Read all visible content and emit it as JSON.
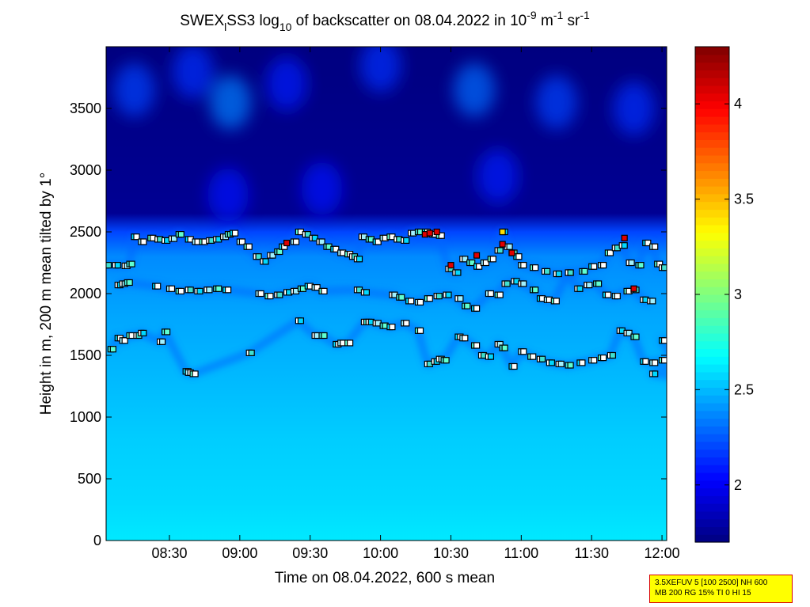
{
  "chart_data": {
    "type": "heatmap",
    "title": {
      "prefix": "SWEX",
      "sub1": "l",
      "mid": "SS3 log",
      "sub2": "10",
      "rest": " of backscatter on 08.04.2022 in 10",
      "sup1": "-9",
      "unit1": " m",
      "sup2": "-1",
      "unit2": " sr",
      "sup3": "-1"
    },
    "xlabel": "Time on 08.04.2022, 600 s mean",
    "ylabel": "Height in m, 200 m mean tilted by 1°",
    "x_ticks": [
      "08:30",
      "09:00",
      "09:30",
      "10:00",
      "10:30",
      "11:00",
      "11:30",
      "12:00"
    ],
    "x_tick_minutes": [
      510,
      540,
      570,
      600,
      630,
      660,
      690,
      720
    ],
    "xlim_minutes": [
      483,
      722
    ],
    "y_ticks": [
      "0",
      "500",
      "1000",
      "1500",
      "2000",
      "2500",
      "3000",
      "3500"
    ],
    "y_tick_values": [
      0,
      500,
      1000,
      1500,
      2000,
      2500,
      3000,
      3500
    ],
    "ylim": [
      0,
      4000
    ],
    "colorbar": {
      "ticks": [
        "2",
        "2.5",
        "3",
        "3.5",
        "4"
      ],
      "tick_values": [
        2,
        2.5,
        3,
        3.5,
        4
      ],
      "range": [
        1.7,
        4.3
      ],
      "colormap": "jet"
    },
    "background_profile": [
      {
        "h": 0,
        "v": 2.62
      },
      {
        "h": 300,
        "v": 2.58
      },
      {
        "h": 800,
        "v": 2.55
      },
      {
        "h": 1300,
        "v": 2.5
      },
      {
        "h": 1800,
        "v": 2.45
      },
      {
        "h": 2300,
        "v": 2.38
      },
      {
        "h": 2500,
        "v": 2.2
      },
      {
        "h": 2650,
        "v": 1.75
      },
      {
        "h": 4000,
        "v": 1.7
      }
    ],
    "upper_patches": [
      {
        "t": 495,
        "h": 3650,
        "v": 2.2
      },
      {
        "t": 536,
        "h": 3550,
        "v": 2.35
      },
      {
        "t": 520,
        "h": 3800,
        "v": 2.15
      },
      {
        "t": 560,
        "h": 3700,
        "v": 2.1
      },
      {
        "t": 600,
        "h": 3850,
        "v": 2.15
      },
      {
        "t": 640,
        "h": 3650,
        "v": 2.3
      },
      {
        "t": 675,
        "h": 3550,
        "v": 2.2
      },
      {
        "t": 708,
        "h": 3500,
        "v": 2.15
      },
      {
        "t": 575,
        "h": 2850,
        "v": 2.05
      },
      {
        "t": 650,
        "h": 2950,
        "v": 2.1
      },
      {
        "t": 535,
        "h": 2800,
        "v": 2.05
      }
    ],
    "cloud_base_layers": [
      {
        "name": "upper",
        "color_value": 2.65,
        "points": [
          [
            483,
            2230
          ],
          [
            487,
            2230
          ],
          [
            491,
            2225
          ],
          [
            493,
            2240
          ],
          [
            495,
            2460
          ],
          [
            498,
            2420
          ],
          [
            502,
            2450
          ],
          [
            505,
            2440
          ],
          [
            508,
            2430
          ],
          [
            511,
            2445
          ],
          [
            514,
            2480
          ],
          [
            518,
            2440
          ],
          [
            521,
            2420
          ],
          [
            524,
            2420
          ],
          [
            527,
            2430
          ],
          [
            530,
            2440
          ],
          [
            533,
            2460
          ],
          [
            535,
            2480
          ],
          [
            537,
            2490
          ],
          [
            540,
            2420
          ],
          [
            543,
            2380
          ],
          [
            547,
            2300
          ],
          [
            550,
            2260
          ],
          [
            553,
            2310
          ],
          [
            556,
            2340
          ],
          [
            558,
            2380
          ],
          [
            563,
            2420
          ],
          [
            565,
            2500
          ],
          [
            568,
            2480
          ],
          [
            571,
            2450
          ],
          [
            574,
            2420
          ],
          [
            577,
            2380
          ],
          [
            580,
            2360
          ],
          [
            583,
            2330
          ],
          [
            586,
            2320
          ],
          [
            588,
            2300
          ],
          [
            590,
            2280
          ],
          [
            592,
            2460
          ],
          [
            595,
            2440
          ],
          [
            598,
            2420
          ],
          [
            601,
            2450
          ],
          [
            604,
            2460
          ],
          [
            607,
            2440
          ],
          [
            610,
            2430
          ],
          [
            613,
            2490
          ],
          [
            616,
            2500
          ],
          [
            619,
            2500
          ],
          [
            622,
            2480
          ],
          [
            625,
            2470
          ],
          [
            629,
            2200
          ],
          [
            632,
            2170
          ],
          [
            635,
            2280
          ],
          [
            638,
            2250
          ],
          [
            641,
            2220
          ],
          [
            644,
            2250
          ],
          [
            647,
            2280
          ],
          [
            650,
            2350
          ],
          [
            652,
            2500
          ],
          [
            654,
            2380
          ],
          [
            656,
            2330
          ],
          [
            658,
            2300
          ],
          [
            660,
            2230
          ],
          [
            665,
            2210
          ],
          [
            670,
            2180
          ],
          [
            675,
            2160
          ],
          [
            680,
            2170
          ],
          [
            686,
            2180
          ],
          [
            690,
            2220
          ],
          [
            694,
            2230
          ],
          [
            697,
            2330
          ],
          [
            700,
            2370
          ],
          [
            703,
            2390
          ],
          [
            706,
            2250
          ],
          [
            710,
            2230
          ],
          [
            713,
            2410
          ],
          [
            716,
            2380
          ],
          [
            718,
            2240
          ],
          [
            720,
            2210
          ]
        ]
      },
      {
        "name": "middle",
        "color_value": 2.6,
        "points": [
          [
            488,
            2070
          ],
          [
            490,
            2080
          ],
          [
            492,
            2090
          ],
          [
            504,
            2060
          ],
          [
            510,
            2040
          ],
          [
            514,
            2020
          ],
          [
            518,
            2030
          ],
          [
            522,
            2020
          ],
          [
            526,
            2030
          ],
          [
            530,
            2040
          ],
          [
            534,
            2030
          ],
          [
            548,
            2000
          ],
          [
            552,
            1980
          ],
          [
            556,
            1990
          ],
          [
            560,
            2010
          ],
          [
            563,
            2020
          ],
          [
            566,
            2040
          ],
          [
            569,
            2060
          ],
          [
            572,
            2050
          ],
          [
            575,
            2020
          ],
          [
            590,
            2030
          ],
          [
            593,
            2010
          ],
          [
            605,
            1990
          ],
          [
            608,
            1970
          ],
          [
            612,
            1940
          ],
          [
            616,
            1930
          ],
          [
            620,
            1960
          ],
          [
            624,
            1980
          ],
          [
            628,
            1990
          ],
          [
            633,
            1960
          ],
          [
            636,
            1900
          ],
          [
            640,
            1880
          ],
          [
            646,
            2000
          ],
          [
            650,
            1990
          ],
          [
            653,
            2080
          ],
          [
            657,
            2100
          ],
          [
            660,
            2080
          ],
          [
            665,
            2030
          ],
          [
            668,
            1960
          ],
          [
            671,
            1950
          ],
          [
            674,
            1940
          ],
          [
            680,
            2170
          ],
          [
            684,
            2040
          ],
          [
            688,
            2070
          ],
          [
            692,
            2080
          ],
          [
            696,
            1990
          ],
          [
            700,
            1980
          ],
          [
            705,
            2020
          ],
          [
            708,
            2030
          ],
          [
            712,
            1950
          ],
          [
            715,
            1940
          ]
        ]
      },
      {
        "name": "lower",
        "color_value": 2.6,
        "points": [
          [
            485,
            1550
          ],
          [
            488,
            1640
          ],
          [
            490,
            1620
          ],
          [
            493,
            1660
          ],
          [
            496,
            1660
          ],
          [
            498,
            1680
          ],
          [
            506,
            1610
          ],
          [
            508,
            1690
          ],
          [
            517,
            1370
          ],
          [
            518,
            1360
          ],
          [
            520,
            1350
          ],
          [
            544,
            1520
          ],
          [
            565,
            1780
          ],
          [
            572,
            1660
          ],
          [
            575,
            1660
          ],
          [
            581,
            1590
          ],
          [
            583,
            1600
          ],
          [
            586,
            1600
          ],
          [
            593,
            1770
          ],
          [
            595,
            1770
          ],
          [
            598,
            1760
          ],
          [
            601,
            1740
          ],
          [
            604,
            1730
          ],
          [
            610,
            1760
          ],
          [
            616,
            1700
          ],
          [
            620,
            1430
          ],
          [
            623,
            1450
          ],
          [
            625,
            1470
          ],
          [
            627,
            1460
          ],
          [
            633,
            1650
          ],
          [
            635,
            1640
          ],
          [
            640,
            1580
          ],
          [
            643,
            1500
          ],
          [
            646,
            1490
          ],
          [
            650,
            1590
          ],
          [
            652,
            1560
          ],
          [
            656,
            1410
          ],
          [
            660,
            1530
          ],
          [
            664,
            1490
          ],
          [
            668,
            1470
          ],
          [
            672,
            1440
          ],
          [
            676,
            1430
          ],
          [
            680,
            1420
          ],
          [
            685,
            1440
          ],
          [
            690,
            1460
          ],
          [
            694,
            1480
          ],
          [
            698,
            1500
          ],
          [
            702,
            1700
          ],
          [
            705,
            1680
          ],
          [
            708,
            1650
          ],
          [
            712,
            1450
          ],
          [
            716,
            1440
          ],
          [
            720,
            1460
          ],
          [
            724,
            1420
          ],
          [
            716,
            1350
          ],
          [
            724,
            1330
          ],
          [
            728,
            1360
          ],
          [
            720,
            1620
          ],
          [
            726,
            1600
          ]
        ]
      }
    ],
    "marker_colors": [
      "#ffffff",
      "#ffffff",
      "#ffffff",
      "#40e0d0",
      "#00d8ff",
      "#a0f0ff",
      "#60ffd0"
    ],
    "red_markers": [
      [
        560,
        2410
      ],
      [
        619,
        2480
      ],
      [
        621,
        2490
      ],
      [
        624,
        2500
      ],
      [
        630,
        2230
      ],
      [
        641,
        2310
      ],
      [
        652,
        2400
      ],
      [
        656,
        2330
      ],
      [
        704,
        2450
      ],
      [
        708,
        2040
      ]
    ],
    "yellow_markers": [
      [
        652,
        2500
      ]
    ],
    "info_lines": [
      "3.5XEFUV 5 [100 2500] NH 600",
      "MB 200 RG 15% TI 0 HI 15"
    ]
  }
}
